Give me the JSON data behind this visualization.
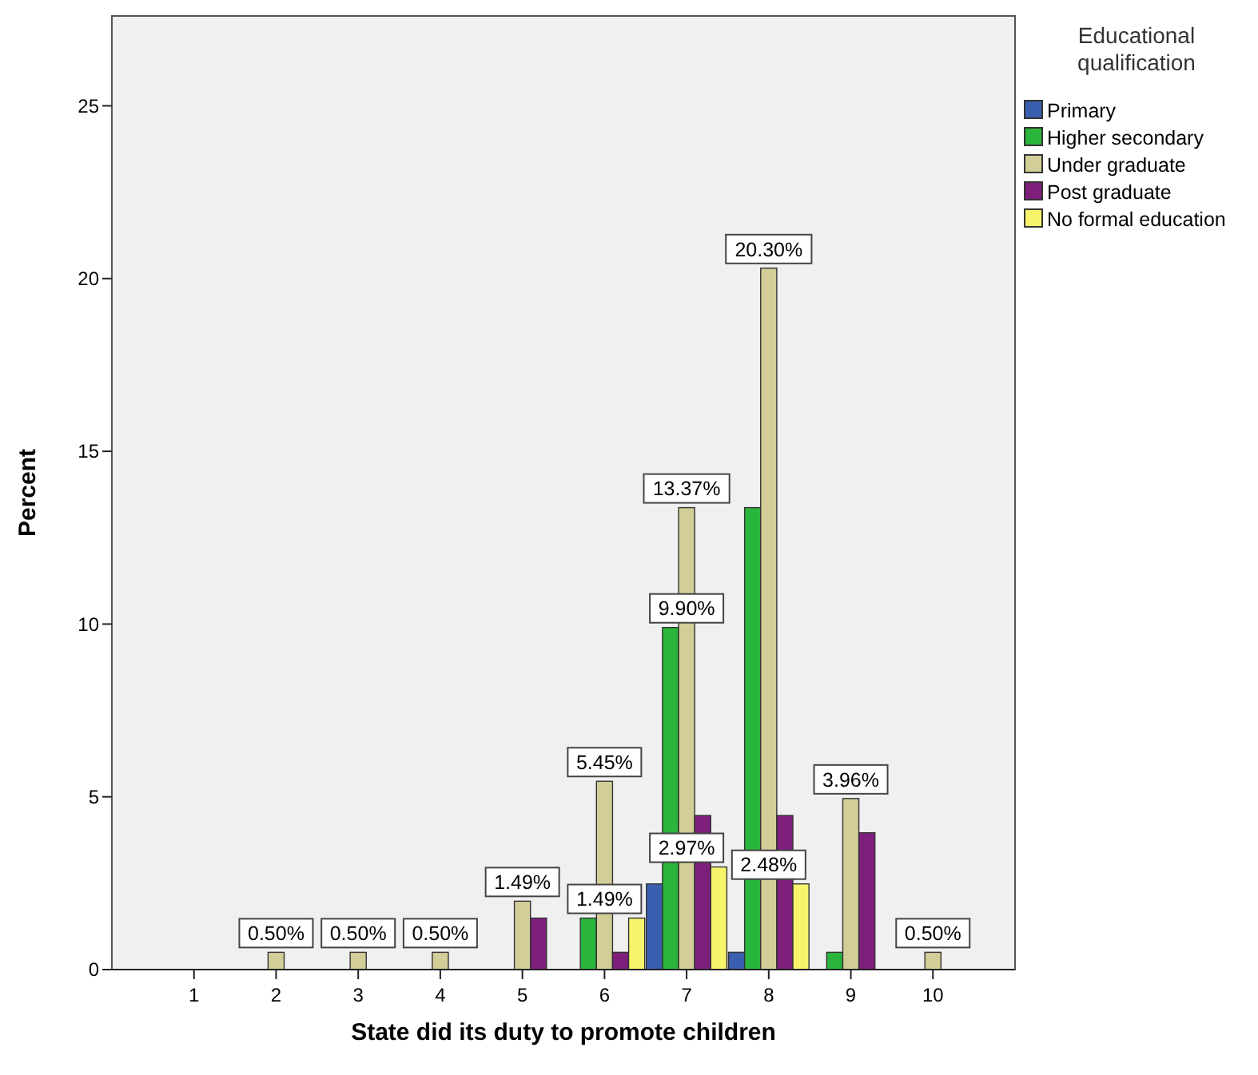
{
  "chart_data": {
    "type": "bar",
    "xlabel": "State did its duty to promote children",
    "ylabel": "Percent",
    "legend_title": "Educational qualification",
    "categories": [
      "1",
      "2",
      "3",
      "4",
      "5",
      "6",
      "7",
      "8",
      "9",
      "10"
    ],
    "series": [
      {
        "name": "Primary",
        "color": "#3a5fb0",
        "values": [
          0,
          0,
          0,
          0,
          0,
          0,
          2.48,
          0.5,
          0,
          0
        ]
      },
      {
        "name": "Higher secondary",
        "color": "#2ab63c",
        "values": [
          0,
          0,
          0,
          0,
          0,
          1.49,
          9.9,
          13.37,
          0.5,
          0
        ]
      },
      {
        "name": "Under graduate",
        "color": "#d3cd98",
        "values": [
          0,
          0.5,
          0.5,
          0.5,
          1.98,
          5.45,
          13.37,
          20.3,
          4.95,
          0.5
        ]
      },
      {
        "name": "Post graduate",
        "color": "#7e1f7c",
        "values": [
          0,
          0,
          0,
          0,
          1.49,
          0.5,
          4.46,
          4.46,
          3.96,
          0
        ]
      },
      {
        "name": "No formal education",
        "color": "#f7f36a",
        "values": [
          0,
          0,
          0,
          0,
          0,
          1.49,
          2.97,
          2.48,
          0,
          0
        ]
      }
    ],
    "annotations": [
      {
        "text": "0.50%",
        "x": "2",
        "y": 0.5
      },
      {
        "text": "0.50%",
        "x": "3",
        "y": 0.5
      },
      {
        "text": "0.50%",
        "x": "4",
        "y": 0.5
      },
      {
        "text": "1.49%",
        "x": "5",
        "y": 1.49
      },
      {
        "text": "1.49%",
        "x": "6",
        "y": 1.49
      },
      {
        "text": "5.45%",
        "x": "6",
        "y": 5.45
      },
      {
        "text": "2.97%",
        "x": "7",
        "y": 2.97
      },
      {
        "text": "9.90%",
        "x": "7",
        "y": 9.9
      },
      {
        "text": "13.37%",
        "x": "7",
        "y": 13.37
      },
      {
        "text": "2.48%",
        "x": "8",
        "y": 2.48
      },
      {
        "text": "20.30%",
        "x": "8",
        "y": 20.3
      },
      {
        "text": "3.96%",
        "x": "9",
        "y": 3.96
      },
      {
        "text": "0.50%",
        "x": "10",
        "y": 0.5
      }
    ],
    "ylim": [
      0,
      27.6
    ],
    "yticks": [
      0,
      5,
      10,
      15,
      20,
      25
    ],
    "legend": "right",
    "grid": false
  }
}
